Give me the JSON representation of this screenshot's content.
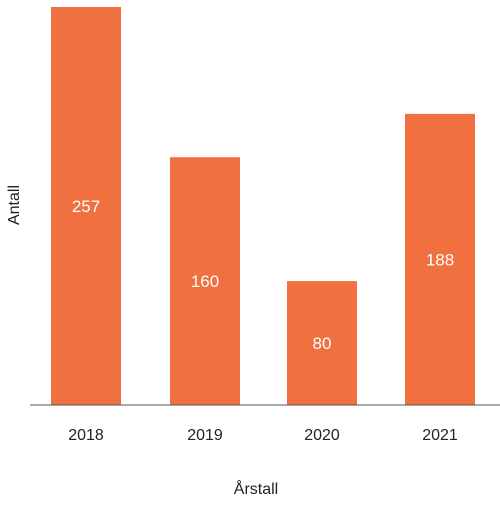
{
  "chart_data": {
    "type": "bar",
    "title": "",
    "xlabel": "Årstall",
    "ylabel": "Antall",
    "categories": [
      "2018",
      "2019",
      "2020",
      "2021"
    ],
    "values": [
      257,
      160,
      80,
      188
    ],
    "data_labels": [
      "257",
      "160",
      "80",
      "188"
    ],
    "ylim": [
      0,
      257
    ],
    "grid": false,
    "legend": "none",
    "bar_color": "#F07040"
  }
}
